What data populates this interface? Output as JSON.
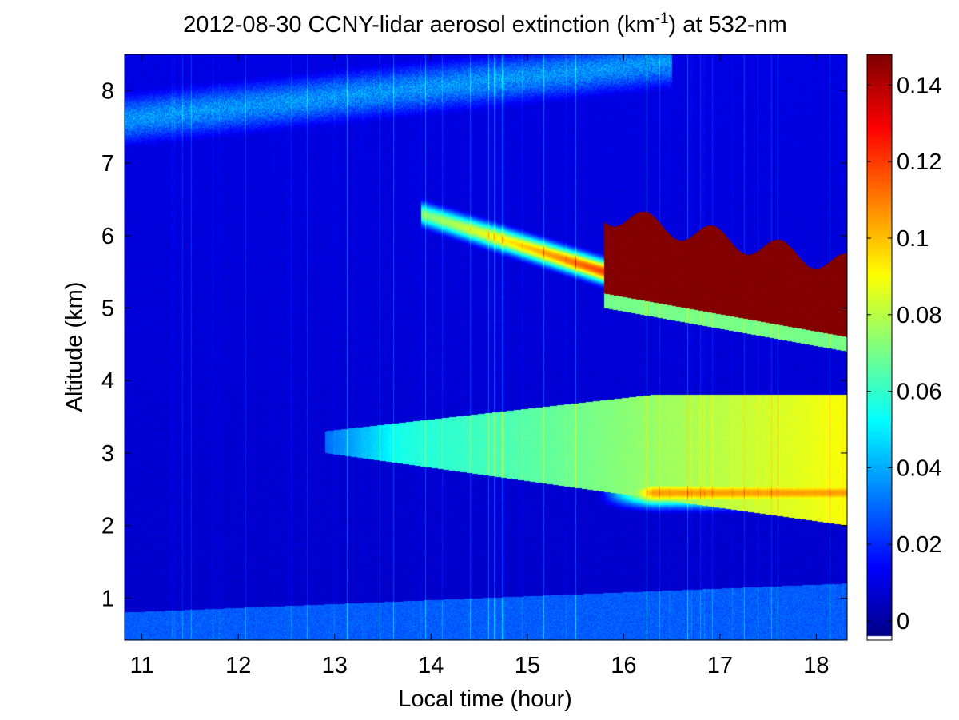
{
  "chart_data": {
    "type": "heatmap",
    "title": {
      "before": "2012-08-30 CCNY-lidar aerosol extinction (km",
      "sup": "-1",
      "after": ") at 532-nm"
    },
    "xlabel": "Local time (hour)",
    "ylabel": "Altitude (km)",
    "xlim": [
      10.82,
      18.32
    ],
    "ylim": [
      0.42,
      8.5
    ],
    "x_ticks": [
      11,
      12,
      13,
      14,
      15,
      16,
      17,
      18
    ],
    "y_ticks": [
      1,
      2,
      3,
      4,
      5,
      6,
      7,
      8
    ],
    "colorbar": {
      "colormap": "jet",
      "range": [
        -0.005,
        0.148
      ],
      "ticks": [
        0,
        0.02,
        0.04,
        0.06,
        0.08,
        0.1,
        0.12,
        0.14
      ],
      "tick_labels": [
        "0",
        "0.02",
        "0.04",
        "0.06",
        "0.08",
        "0.1",
        "0.12",
        "0.14"
      ]
    },
    "features": [
      {
        "name": "boundary-layer",
        "x_range": [
          10.82,
          18.32
        ],
        "alt_bottom": 0.42,
        "alt_top": [
          0.8,
          1.2
        ],
        "value": 0.032
      },
      {
        "name": "smoke-plume-lower",
        "x_range": [
          12.9,
          18.32
        ],
        "alt_top": [
          3.3,
          3.8
        ],
        "alt_bottom": [
          3.0,
          2.0
        ],
        "value": [
          0.05,
          0.09
        ]
      },
      {
        "name": "smoke-plume-lower-core",
        "x_range": [
          16.0,
          18.32
        ],
        "alt": 2.45,
        "value": 0.105
      },
      {
        "name": "elevated-layer-dense",
        "x_range": [
          15.8,
          18.32
        ],
        "alt_top": [
          6.3,
          5.6
        ],
        "alt_bottom": [
          5.2,
          4.6
        ],
        "value": 0.148
      },
      {
        "name": "elevated-layer-edge",
        "x_range": [
          13.9,
          15.8
        ],
        "alt": [
          6.3,
          5.5
        ],
        "value": [
          0.07,
          0.12
        ]
      },
      {
        "name": "cirrus-upper",
        "x_range": [
          10.82,
          16.5
        ],
        "alt": [
          7.6,
          8.4
        ],
        "value": 0.045
      }
    ]
  }
}
